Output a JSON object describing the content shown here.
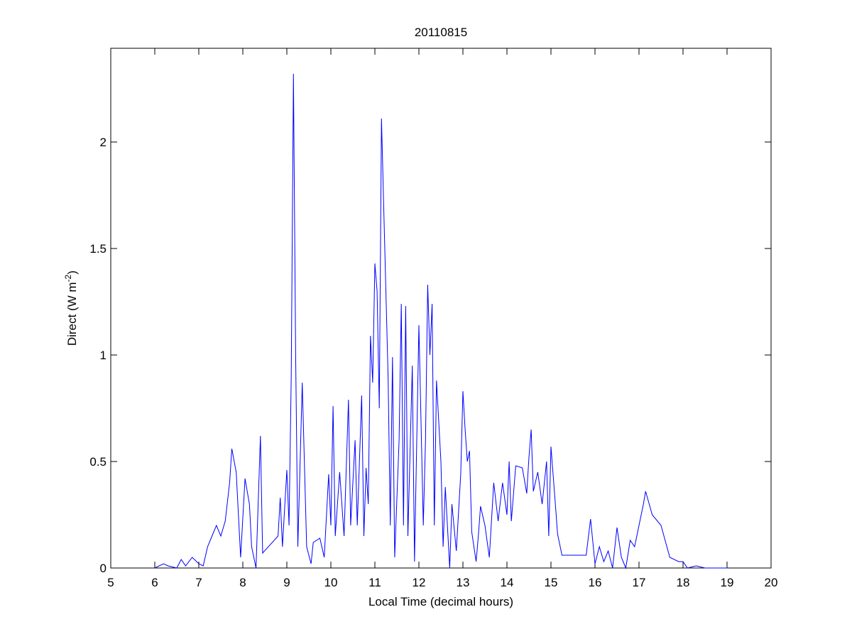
{
  "chart_data": {
    "type": "line",
    "title": "20110815",
    "xlabel": "Local Time (decimal hours)",
    "ylabel_parts": [
      "Direct (W m",
      "-2",
      ")"
    ],
    "color": "#0000ff",
    "xlim": [
      5,
      20
    ],
    "xticks": [
      5,
      6,
      7,
      8,
      9,
      10,
      11,
      12,
      13,
      14,
      15,
      16,
      17,
      18,
      19,
      20
    ],
    "ylim": [
      0,
      2.44
    ],
    "yticks": [
      0,
      0.5,
      1,
      1.5,
      2
    ],
    "grid": false,
    "x": [
      6.0,
      6.2,
      6.3,
      6.5,
      6.6,
      6.7,
      6.85,
      7.0,
      7.1,
      7.2,
      7.3,
      7.4,
      7.5,
      7.6,
      7.7,
      7.75,
      7.85,
      7.95,
      8.05,
      8.15,
      8.2,
      8.3,
      8.4,
      8.45,
      8.8,
      8.85,
      8.9,
      9.0,
      9.05,
      9.1,
      9.15,
      9.2,
      9.25,
      9.35,
      9.45,
      9.55,
      9.6,
      9.75,
      9.85,
      9.95,
      10.0,
      10.05,
      10.1,
      10.2,
      10.3,
      10.4,
      10.45,
      10.55,
      10.6,
      10.7,
      10.75,
      10.8,
      10.85,
      10.9,
      10.95,
      11.0,
      11.05,
      11.1,
      11.15,
      11.2,
      11.25,
      11.3,
      11.35,
      11.4,
      11.45,
      11.55,
      11.6,
      11.65,
      11.7,
      11.75,
      11.85,
      11.9,
      12.0,
      12.1,
      12.15,
      12.2,
      12.25,
      12.3,
      12.35,
      12.4,
      12.5,
      12.55,
      12.6,
      12.7,
      12.75,
      12.85,
      12.95,
      13.0,
      13.05,
      13.1,
      13.15,
      13.2,
      13.25,
      13.3,
      13.35,
      13.4,
      13.5,
      13.6,
      13.7,
      13.8,
      13.9,
      14.0,
      14.05,
      14.1,
      14.2,
      14.35,
      14.45,
      14.5,
      14.55,
      14.6,
      14.7,
      14.8,
      14.9,
      14.95,
      15.0,
      15.1,
      15.15,
      15.25,
      15.8,
      15.9,
      16.0,
      16.1,
      16.2,
      16.3,
      16.4,
      16.5,
      16.6,
      16.7,
      16.8,
      16.9,
      17.0,
      17.1,
      17.15,
      17.3,
      17.5,
      17.7,
      17.9,
      18.0,
      18.1,
      18.3,
      18.5,
      19.0
    ],
    "values": [
      0.0,
      0.02,
      0.01,
      0.0,
      0.04,
      0.01,
      0.05,
      0.02,
      0.01,
      0.1,
      0.15,
      0.2,
      0.15,
      0.22,
      0.4,
      0.56,
      0.45,
      0.05,
      0.42,
      0.3,
      0.1,
      0.0,
      0.62,
      0.07,
      0.15,
      0.33,
      0.1,
      0.46,
      0.2,
      0.9,
      2.32,
      1.0,
      0.1,
      0.87,
      0.1,
      0.02,
      0.12,
      0.14,
      0.05,
      0.44,
      0.2,
      0.76,
      0.15,
      0.45,
      0.15,
      0.79,
      0.2,
      0.6,
      0.2,
      0.81,
      0.15,
      0.47,
      0.3,
      1.09,
      0.87,
      1.43,
      1.3,
      0.75,
      2.11,
      1.7,
      1.3,
      0.9,
      0.2,
      0.99,
      0.05,
      0.6,
      1.24,
      0.2,
      1.23,
      0.15,
      0.95,
      0.03,
      1.14,
      0.2,
      0.6,
      1.33,
      1.0,
      1.24,
      0.2,
      0.88,
      0.5,
      0.1,
      0.38,
      0.0,
      0.3,
      0.08,
      0.44,
      0.83,
      0.65,
      0.5,
      0.55,
      0.17,
      0.1,
      0.03,
      0.15,
      0.29,
      0.2,
      0.05,
      0.4,
      0.22,
      0.4,
      0.25,
      0.5,
      0.22,
      0.48,
      0.47,
      0.35,
      0.52,
      0.65,
      0.36,
      0.45,
      0.3,
      0.5,
      0.15,
      0.57,
      0.3,
      0.16,
      0.06,
      0.06,
      0.23,
      0.02,
      0.1,
      0.03,
      0.08,
      0.0,
      0.19,
      0.05,
      0.0,
      0.13,
      0.1,
      0.2,
      0.3,
      0.36,
      0.25,
      0.2,
      0.05,
      0.03,
      0.03,
      0.0,
      0.01,
      0.0,
      0.0
    ]
  }
}
